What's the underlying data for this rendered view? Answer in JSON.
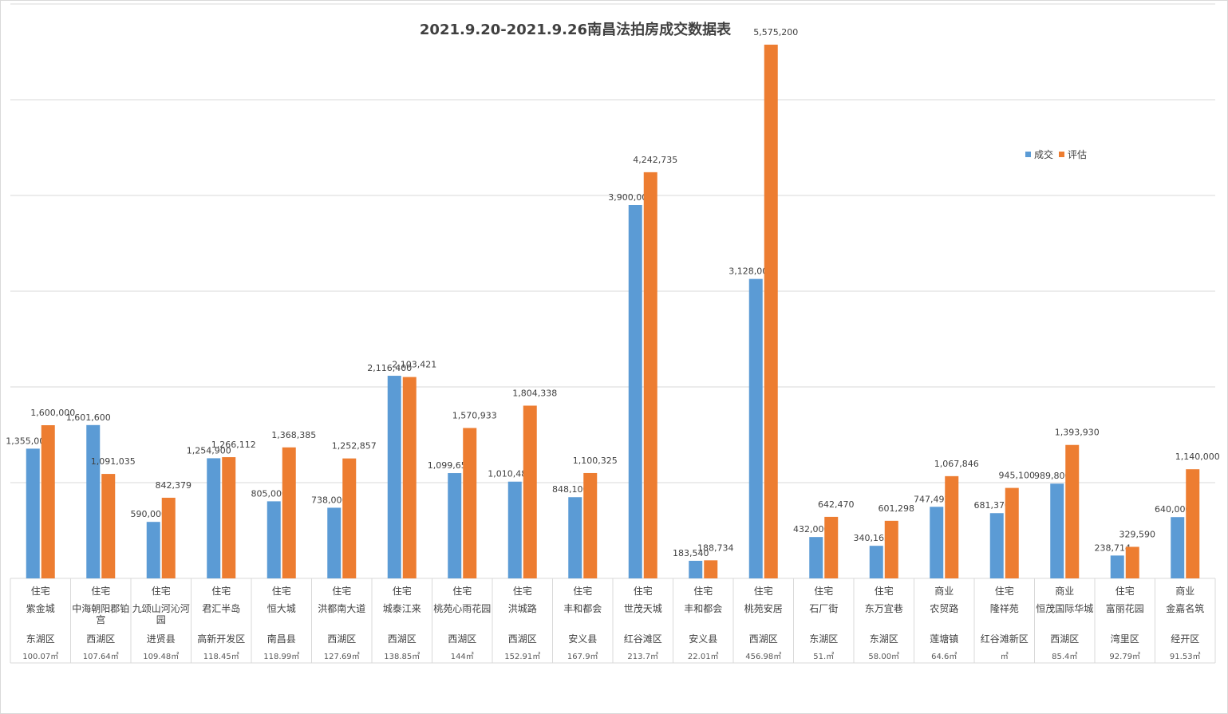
{
  "chart_data": {
    "type": "bar",
    "title": "2021.9.20-2021.9.26南昌法拍房成交数据表",
    "ylim": [
      0,
      6000000
    ],
    "grid": true,
    "legend_position": "right",
    "colors": {
      "成交": "#5b9bd5",
      "评估": "#ed7d31"
    },
    "categories": [
      {
        "type": "住宅",
        "name": "紫金城",
        "district": "东湖区",
        "area": "100.07㎡"
      },
      {
        "type": "住宅",
        "name": "中海朝阳郡铂宫",
        "district": "西湖区",
        "area": "107.64㎡"
      },
      {
        "type": "住宅",
        "name": "九颂山河沁河园",
        "district": "进贤县",
        "area": "109.48㎡"
      },
      {
        "type": "住宅",
        "name": "君汇半岛",
        "district": "高新开发区",
        "area": "118.45㎡"
      },
      {
        "type": "住宅",
        "name": "恒大城",
        "district": "南昌县",
        "area": "118.99㎡"
      },
      {
        "type": "住宅",
        "name": "洪都南大道",
        "district": "西湖区",
        "area": "127.69㎡"
      },
      {
        "type": "住宅",
        "name": "城泰江来",
        "district": "西湖区",
        "area": "138.85㎡"
      },
      {
        "type": "住宅",
        "name": "桃苑心雨花园",
        "district": "西湖区",
        "area": "144㎡"
      },
      {
        "type": "住宅",
        "name": "洪城路",
        "district": "西湖区",
        "area": "152.91㎡"
      },
      {
        "type": "住宅",
        "name": "丰和都会",
        "district": "安义县",
        "area": "167.9㎡"
      },
      {
        "type": "住宅",
        "name": "世茂天城",
        "district": "红谷滩区",
        "area": "213.7㎡"
      },
      {
        "type": "住宅",
        "name": "丰和都会",
        "district": "安义县",
        "area": "22.01㎡"
      },
      {
        "type": "住宅",
        "name": "桃苑安居",
        "district": "西湖区",
        "area": "456.98㎡"
      },
      {
        "type": "住宅",
        "name": "石厂街",
        "district": "东湖区",
        "area": "51.㎡"
      },
      {
        "type": "住宅",
        "name": "东万宜巷",
        "district": "东湖区",
        "area": "58.00㎡"
      },
      {
        "type": "商业",
        "name": "农贸路",
        "district": "莲塘镇",
        "area": "64.6㎡"
      },
      {
        "type": "住宅",
        "name": "隆祥苑",
        "district": "红谷滩新区",
        "area": "㎡"
      },
      {
        "type": "商业",
        "name": "恒茂国际华城",
        "district": "西湖区",
        "area": "85.4㎡"
      },
      {
        "type": "住宅",
        "name": "富丽花园",
        "district": "湾里区",
        "area": "92.79㎡"
      },
      {
        "type": "商业",
        "name": "金嘉名筑",
        "district": "经开区",
        "area": "91.53㎡"
      }
    ],
    "series": [
      {
        "name": "成交",
        "values": [
          1355000,
          1601600,
          590000,
          1254900,
          805000,
          738000,
          2116400,
          1099653,
          1010480,
          848100,
          3900000,
          183540,
          3128000,
          432000,
          340165,
          747492,
          681370,
          989800,
          238714,
          640000
        ]
      },
      {
        "name": "评估",
        "values": [
          1600000,
          1091035,
          842379,
          1266112,
          1368385,
          1252857,
          2103421,
          1570933,
          1804338,
          1100325,
          4242735,
          188734,
          5575200,
          642470,
          601298,
          1067846,
          945100,
          1393930,
          329590,
          1140000
        ]
      }
    ]
  }
}
